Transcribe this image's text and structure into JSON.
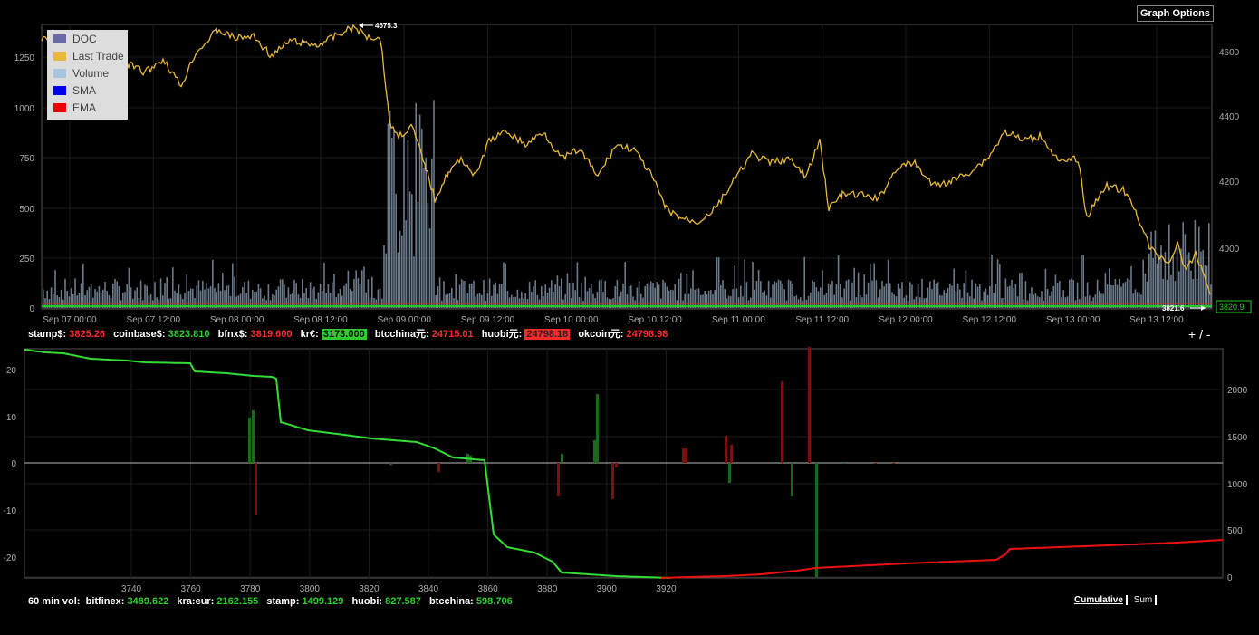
{
  "graph_options_label": "Graph Options",
  "legend": [
    {
      "label": "DOC",
      "color": "#6a6aa8"
    },
    {
      "label": "Last Trade",
      "color": "#e8b83a"
    },
    {
      "label": "Volume",
      "color": "#a9c4dd"
    },
    {
      "label": "SMA",
      "color": "#0000ee"
    },
    {
      "label": "EMA",
      "color": "#ee0000"
    }
  ],
  "price_chart": {
    "left_ticks": [
      "1250",
      "1000",
      "750",
      "500",
      "250",
      "0"
    ],
    "right_ticks": [
      "4600",
      "4400",
      "4200",
      "4000"
    ],
    "x_ticks": [
      "Sep 07 00:00",
      "Sep 07 12:00",
      "Sep 08 00:00",
      "Sep 08 12:00",
      "Sep 09 00:00",
      "Sep 09 12:00",
      "Sep 10 00:00",
      "Sep 10 12:00",
      "Sep 11 00:00",
      "Sep 11 12:00",
      "Sep 12 00:00",
      "Sep 12 12:00",
      "Sep 13 00:00",
      "Sep 13 12:00"
    ],
    "max_label": "4675.3",
    "min_label": "3821.6",
    "last_label": "3820.9",
    "trade_color": "#e8b83a",
    "volume_color": "#8ea3b8"
  },
  "ticker": [
    {
      "label": "stamp$:",
      "value": "3825.26",
      "style": "dn"
    },
    {
      "label": "coinbase$:",
      "value": "3823.810",
      "style": "up"
    },
    {
      "label": "bfnx$:",
      "value": "3819.600",
      "style": "dn"
    },
    {
      "label": "kr€:",
      "value": "3173.000",
      "style": "hl-up"
    },
    {
      "label": "btcchina元:",
      "value": "24715.01",
      "style": "dn"
    },
    {
      "label": "huobi元:",
      "value": "24798.18",
      "style": "hl-dn"
    },
    {
      "label": "okcoin元:",
      "value": "24798.98",
      "style": "dn"
    }
  ],
  "zoom": {
    "plus": "+",
    "sep": "/",
    "minus": "-"
  },
  "depth_chart": {
    "left_ticks": [
      "20",
      "10",
      "0",
      "-10",
      "-20"
    ],
    "right_ticks": [
      "2000",
      "1500",
      "1000",
      "500",
      "0"
    ],
    "x_ticks": [
      "3740",
      "3760",
      "3780",
      "3800",
      "3820",
      "3840",
      "3860",
      "3880",
      "3900",
      "3920"
    ],
    "bid_color": "#33dd33",
    "ask_color": "#ee1111"
  },
  "volume_line": {
    "title": "60 min vol:",
    "items": [
      {
        "label": "bitfinex:",
        "value": "3489.622"
      },
      {
        "label": "kra:eur:",
        "value": "2162.155"
      },
      {
        "label": "stamp:",
        "value": "1499.129"
      },
      {
        "label": "huobi:",
        "value": "827.587"
      },
      {
        "label": "btcchina:",
        "value": "598.706"
      }
    ]
  },
  "modes": {
    "cumulative": "Cumulative",
    "sum": "Sum"
  }
}
